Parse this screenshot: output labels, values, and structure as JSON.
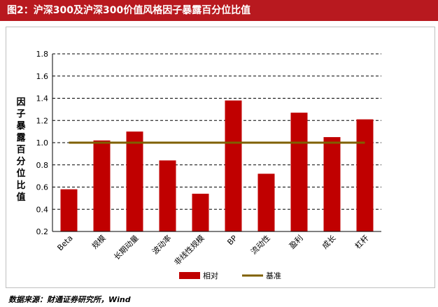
{
  "header": {
    "title": "图2：沪深300及沪深300价值风格因子暴露百分位比值"
  },
  "footer": {
    "source": "数据来源：财通证券研究所，Wind"
  },
  "chart_data": {
    "type": "bar",
    "title": "",
    "xlabel": "",
    "ylabel": "因子暴露百分位比值",
    "ylim": [
      0.2,
      1.8
    ],
    "yticks": [
      0.2,
      0.4,
      0.6,
      0.8,
      1.0,
      1.2,
      1.4,
      1.6,
      1.8
    ],
    "ytick_labels": [
      "0.2",
      "0.4",
      "0.6",
      "0.8",
      "1.0",
      "1.2",
      "1.4",
      "1.6",
      "1.8"
    ],
    "categories": [
      "Beta",
      "规模",
      "长期动量",
      "波动率",
      "非线性规模",
      "BP",
      "流动性",
      "盈利",
      "成长",
      "杠杆"
    ],
    "series": [
      {
        "name": "相对",
        "values": [
          0.58,
          1.02,
          1.1,
          0.84,
          0.54,
          1.38,
          0.72,
          1.27,
          1.05,
          1.21
        ],
        "color": "#c00000"
      }
    ],
    "reference_line": {
      "name": "基准",
      "value": 1.0,
      "color": "#7f6000"
    },
    "grid": "horizontal dashed",
    "legend_position": "bottom-center"
  }
}
